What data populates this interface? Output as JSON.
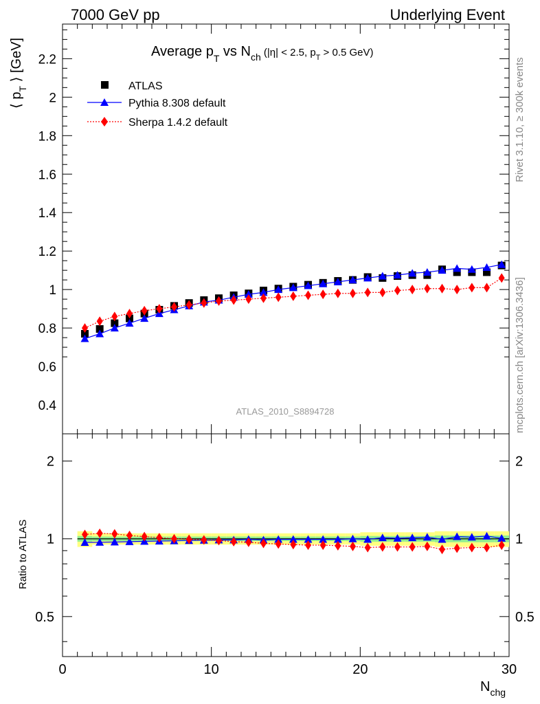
{
  "header": {
    "left": "7000 GeV pp",
    "right": "Underlying Event"
  },
  "plot_title": {
    "main": "Average p",
    "main_sub": "T",
    "vs": " vs N",
    "vs_sub": "ch",
    "cut_a": " (|η| < 2.5, p",
    "cut_sub": "T",
    "cut_b": " > 0.5 GeV)"
  },
  "side_text": {
    "rivet": "Rivet 3.1.10, ≥ 300k events",
    "mcplots": "mcplots.cern.ch [arXiv:1306.3436]"
  },
  "analysis_id": "ATLAS_2010_S8894728",
  "legend": {
    "atlas": "ATLAS",
    "pythia": "Pythia 8.308 default",
    "sherpa": "Sherpa 1.4.2 default"
  },
  "axes": {
    "ylabel_a": "⟨ p",
    "ylabel_sub": "T",
    "ylabel_b": " ⟩ [GeV]",
    "ratio_ylabel": "Ratio to ATLAS",
    "xlabel": "N",
    "xlabel_sub": "chg"
  },
  "colors": {
    "atlas": "#000000",
    "pythia": "#0000ff",
    "sherpa": "#ff0000",
    "band_outer": "#ffff80",
    "band_inner": "#90ee90"
  },
  "chart_data": [
    {
      "type": "scatter",
      "panel": "main",
      "xlim": [
        0,
        30
      ],
      "ylim": [
        0.25,
        2.38
      ],
      "yticks": [
        0.4,
        0.6,
        0.8,
        1,
        1.2,
        1.4,
        1.6,
        1.8,
        2,
        2.2
      ],
      "ytick_labels": [
        "0.4",
        "0.6",
        "0.8",
        "1",
        "1.2",
        "1.4",
        "1.6",
        "1.8",
        "2",
        "2.2"
      ],
      "x": [
        1.5,
        2.5,
        3.5,
        4.5,
        5.5,
        6.5,
        7.5,
        8.5,
        9.5,
        10.5,
        11.5,
        12.5,
        13.5,
        14.5,
        15.5,
        16.5,
        17.5,
        18.5,
        19.5,
        20.5,
        21.5,
        22.5,
        23.5,
        24.5,
        25.5,
        26.5,
        27.5,
        28.5,
        29.5
      ],
      "series": [
        {
          "name": "ATLAS",
          "marker": "square",
          "values": [
            0.77,
            0.795,
            0.825,
            0.85,
            0.875,
            0.895,
            0.915,
            0.93,
            0.945,
            0.955,
            0.97,
            0.98,
            0.995,
            1.005,
            1.015,
            1.025,
            1.035,
            1.045,
            1.05,
            1.065,
            1.06,
            1.07,
            1.075,
            1.075,
            1.105,
            1.09,
            1.09,
            1.09,
            1.125
          ]
        },
        {
          "name": "Pythia 8.308 default",
          "marker": "triangle",
          "values": [
            0.745,
            0.77,
            0.8,
            0.825,
            0.85,
            0.875,
            0.895,
            0.915,
            0.935,
            0.945,
            0.96,
            0.975,
            0.985,
            1.0,
            1.01,
            1.02,
            1.03,
            1.04,
            1.05,
            1.06,
            1.07,
            1.075,
            1.085,
            1.09,
            1.1,
            1.11,
            1.105,
            1.115,
            1.13
          ]
        },
        {
          "name": "Sherpa 1.4.2 default",
          "marker": "diamond",
          "values": [
            0.8,
            0.835,
            0.86,
            0.875,
            0.89,
            0.9,
            0.91,
            0.92,
            0.93,
            0.94,
            0.945,
            0.95,
            0.955,
            0.96,
            0.965,
            0.97,
            0.975,
            0.98,
            0.98,
            0.985,
            0.985,
            0.995,
            1.0,
            1.005,
            1.005,
            1.0,
            1.01,
            1.01,
            1.06
          ]
        }
      ]
    },
    {
      "type": "scatter",
      "panel": "ratio",
      "xlim": [
        0,
        30
      ],
      "ylim": [
        0.35,
        2.55
      ],
      "ylog": true,
      "yticks": [
        0.5,
        1,
        2
      ],
      "ytick_labels": [
        "0.5",
        "1",
        "2"
      ],
      "xticks": [
        0,
        10,
        20,
        30
      ],
      "xtick_labels": [
        "0",
        "10",
        "20",
        "30"
      ],
      "x": [
        1.5,
        2.5,
        3.5,
        4.5,
        5.5,
        6.5,
        7.5,
        8.5,
        9.5,
        10.5,
        11.5,
        12.5,
        13.5,
        14.5,
        15.5,
        16.5,
        17.5,
        18.5,
        19.5,
        20.5,
        21.5,
        22.5,
        23.5,
        24.5,
        25.5,
        26.5,
        27.5,
        28.5,
        29.5
      ],
      "band_outer": [
        0.07,
        0.05,
        0.05,
        0.05,
        0.05,
        0.05,
        0.05,
        0.05,
        0.05,
        0.05,
        0.05,
        0.05,
        0.05,
        0.05,
        0.05,
        0.05,
        0.05,
        0.05,
        0.05,
        0.06,
        0.06,
        0.06,
        0.06,
        0.06,
        0.07,
        0.07,
        0.07,
        0.07,
        0.07
      ],
      "band_inner": [
        0.025,
        0.02,
        0.02,
        0.02,
        0.02,
        0.02,
        0.02,
        0.02,
        0.02,
        0.02,
        0.02,
        0.02,
        0.02,
        0.02,
        0.02,
        0.02,
        0.02,
        0.02,
        0.02,
        0.025,
        0.025,
        0.025,
        0.025,
        0.025,
        0.03,
        0.03,
        0.03,
        0.03,
        0.03
      ],
      "series": [
        {
          "name": "Pythia 8.308 default",
          "marker": "triangle",
          "values": [
            0.968,
            0.97,
            0.972,
            0.975,
            0.978,
            0.98,
            0.982,
            0.985,
            0.988,
            0.99,
            0.99,
            0.995,
            0.99,
            0.995,
            0.995,
            0.995,
            0.995,
            0.995,
            1.0,
            0.995,
            1.01,
            1.005,
            1.01,
            1.015,
            0.995,
            1.02,
            1.015,
            1.025,
            1.005
          ]
        },
        {
          "name": "Sherpa 1.4.2 default",
          "marker": "diamond",
          "values": [
            1.04,
            1.05,
            1.045,
            1.03,
            1.02,
            1.01,
            1.0,
            0.995,
            0.99,
            0.985,
            0.975,
            0.97,
            0.96,
            0.955,
            0.95,
            0.945,
            0.945,
            0.94,
            0.935,
            0.925,
            0.93,
            0.93,
            0.93,
            0.935,
            0.91,
            0.92,
            0.925,
            0.925,
            0.945
          ]
        }
      ]
    }
  ]
}
